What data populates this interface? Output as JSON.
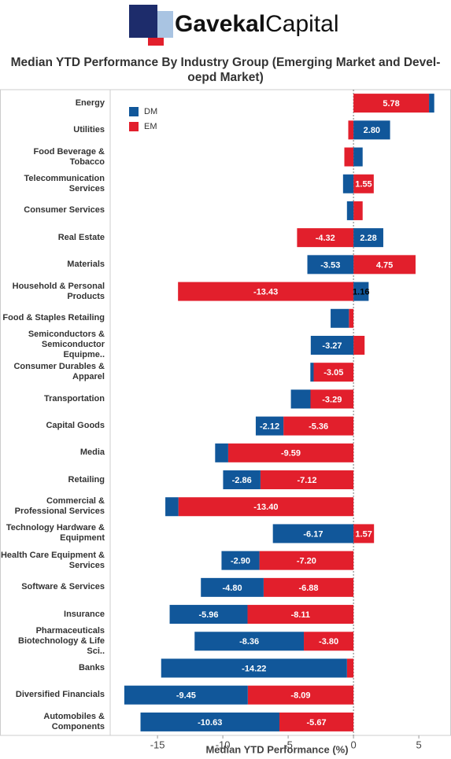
{
  "logo": {
    "bold": "Gavekal",
    "regular": "Capital"
  },
  "chart_data": {
    "type": "stacked_barh",
    "title": "Median YTD Performance By Industry Group (Emerging Market and Devel-oepd Market)",
    "xlabel": "Median YTD Performance (%)",
    "categories": [
      "Energy",
      "Utilities",
      "Food Beverage & Tobacco",
      "Telecommunication Services",
      "Consumer Services",
      "Real Estate",
      "Materials",
      "Household & Personal Products",
      "Food & Staples Retailing",
      "Semiconductors & Semiconductor Equipme..",
      "Consumer Durables & Apparel",
      "Transportation",
      "Capital Goods",
      "Media",
      "Retailing",
      "Commercial & Professional Services",
      "Technology Hardware & Equipment",
      "Health Care Equipment & Services",
      "Software & Services",
      "Insurance",
      "Pharmaceuticals Biotechnology & Life Sci..",
      "Banks",
      "Diversified Financials",
      "Automobiles & Components"
    ],
    "series": [
      {
        "name": "DM",
        "color": "#11579a",
        "values": [
          0.4,
          2.8,
          0.7,
          -0.8,
          -0.5,
          2.28,
          -3.53,
          1.16,
          -1.4,
          -3.27,
          -0.25,
          -1.5,
          -2.12,
          -1.0,
          -2.86,
          -1.0,
          -6.17,
          -2.9,
          -4.8,
          -5.96,
          -8.36,
          -14.22,
          -9.45,
          -10.63
        ],
        "value_labels": [
          null,
          "2.80",
          null,
          null,
          null,
          "2.28",
          "-3.53",
          "1.16",
          null,
          "-3.27",
          null,
          null,
          "-2.12",
          null,
          "-2.86",
          null,
          "-6.17",
          "-2.90",
          "-4.80",
          "-5.96",
          "-8.36",
          "-14.22",
          "-9.45",
          "-10.63"
        ]
      },
      {
        "name": "EM",
        "color": "#e21f2c",
        "values": [
          5.78,
          -0.4,
          -0.7,
          1.55,
          0.7,
          -4.32,
          4.75,
          -13.43,
          -0.35,
          0.85,
          -3.05,
          -3.29,
          -5.36,
          -9.59,
          -7.12,
          -13.4,
          1.57,
          -7.2,
          -6.88,
          -8.11,
          -3.8,
          -0.5,
          -8.09,
          -5.67
        ],
        "value_labels": [
          "5.78",
          null,
          null,
          "1.55",
          null,
          "-4.32",
          "4.75",
          "-13.43",
          null,
          null,
          "-3.05",
          "-3.29",
          "-5.36",
          "-9.59",
          "-7.12",
          "-13.40",
          "1.57",
          "-7.20",
          "-6.88",
          "-8.11",
          "-3.80",
          null,
          "-8.09",
          "-5.67"
        ]
      }
    ],
    "xlim": [
      -18.5,
      6.8
    ],
    "xticks": [
      -15,
      -10,
      -5,
      0,
      5
    ],
    "legend": "upper left"
  }
}
